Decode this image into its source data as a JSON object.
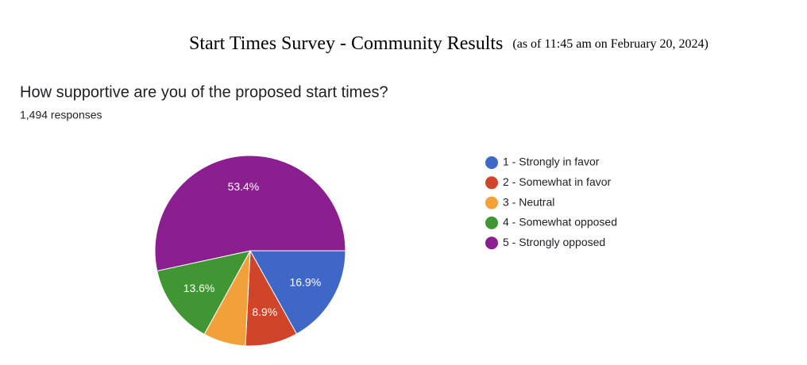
{
  "chart_data": {
    "type": "pie",
    "title": "Start Times Survey - Community Results",
    "subtitle": "(as of 11:45 am on February 20, 2024)",
    "question": "How supportive are you of the proposed start times?",
    "responses": "1,494 responses",
    "series": [
      {
        "name": "1 - Strongly in favor",
        "color": "#3f67c7"
      },
      {
        "name": "2 - Somewhat in favor",
        "color": "#d0442a"
      },
      {
        "name": "3 - Neutral",
        "color": "#f2a03a"
      },
      {
        "name": "4 - Somewhat opposed",
        "color": "#3f9632"
      },
      {
        "name": "5 - Strongly opposed",
        "color": "#8b1f8f"
      }
    ],
    "values": [
      16.9,
      8.9,
      7.2,
      13.6,
      53.4
    ],
    "value_labels": [
      "16.9%",
      "8.9%",
      null,
      "13.6%",
      "53.4%"
    ],
    "legend": "right"
  }
}
